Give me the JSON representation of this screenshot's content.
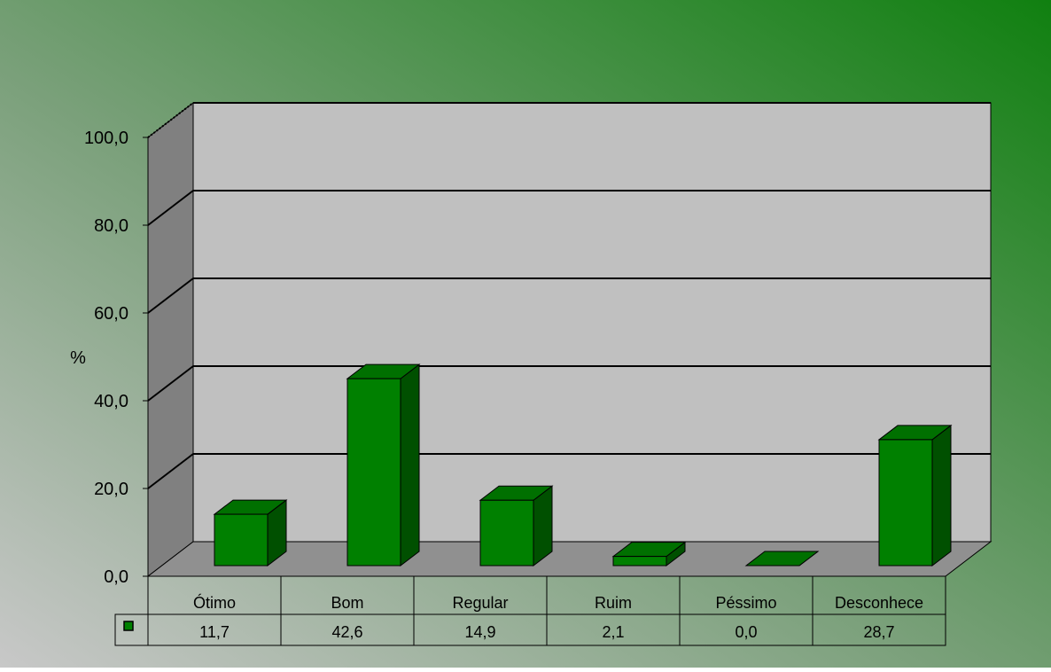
{
  "colors": {
    "bar_front": "#008000",
    "bar_top": "#007000",
    "bar_side": "#005000",
    "back_wall": "#c0c0c0",
    "side_wall": "#808080",
    "floor": "#909090",
    "background_light": "#c8c8c8",
    "background_dark": "#108010"
  },
  "legend": {
    "marker_icon": "green-square-icon"
  },
  "chart_data": {
    "type": "bar",
    "title": "",
    "xlabel": "",
    "ylabel": "%",
    "ylim": [
      0,
      100
    ],
    "yticks": [
      "0,0",
      "20,0",
      "40,0",
      "60,0",
      "80,0",
      "100,0"
    ],
    "categories": [
      "Ótimo",
      "Bom",
      "Regular",
      "Ruim",
      "Péssimo",
      "Desconhece"
    ],
    "values": [
      11.7,
      42.6,
      14.9,
      2.1,
      0.0,
      28.7
    ],
    "value_labels": [
      "11,7",
      "42,6",
      "14,9",
      "2,1",
      "0,0",
      "28,7"
    ],
    "grid": true,
    "legend": "data-table"
  }
}
